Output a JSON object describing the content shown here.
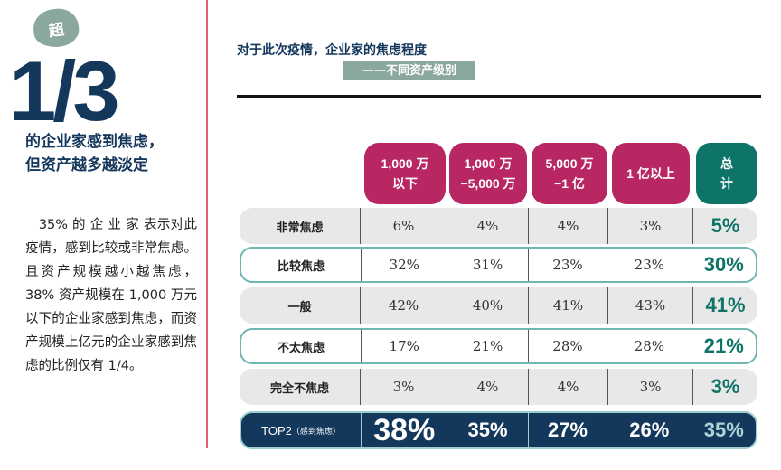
{
  "left": {
    "badge": "超",
    "big": "1/3",
    "headline1": "的企业家感到焦虑，",
    "headline2": "但资产越多越淡定",
    "paragraph": "　35% 的 企 业 家 表示对此疫情，感到比较或非常焦虑。且资产规模越小越焦虑，38% 资产规模在 1,000 万元以下的企业家感到焦虑，而资产规模上亿元的企业家感到焦虑的比例仅有 1/4。"
  },
  "chart_title": "对于此次疫情，企业家的焦虑程度",
  "chart_subtitle": "——不同资产级别",
  "colors": {
    "navy": "#14375c",
    "magenta": "#b82664",
    "teal": "#0e7468",
    "sage": "#8aa89d"
  },
  "chart_data": {
    "type": "table",
    "title": "对于此次疫情，企业家的焦虑程度",
    "columns": [
      "1,000 万以下",
      "1,000 万−5,000 万",
      "5,000 万−1 亿",
      "1 亿以上",
      "总计"
    ],
    "column_lines": [
      [
        "1,000 万",
        "以下"
      ],
      [
        "1,000 万",
        "−5,000 万"
      ],
      [
        "5,000 万",
        "−1 亿"
      ],
      [
        "1 亿以上",
        ""
      ],
      [
        "总",
        "计"
      ]
    ],
    "rows": [
      {
        "label": "非常焦虑",
        "values": [
          "6%",
          "4%",
          "4%",
          "3%",
          "5%"
        ]
      },
      {
        "label": "比较焦虑",
        "values": [
          "32%",
          "31%",
          "23%",
          "23%",
          "30%"
        ]
      },
      {
        "label": "一般",
        "values": [
          "42%",
          "40%",
          "41%",
          "43%",
          "41%"
        ]
      },
      {
        "label": "不太焦虑",
        "values": [
          "17%",
          "21%",
          "28%",
          "28%",
          "21%"
        ]
      },
      {
        "label": "完全不焦虑",
        "values": [
          "3%",
          "4%",
          "4%",
          "3%",
          "3%"
        ]
      }
    ],
    "top2": {
      "label": "TOP2",
      "note": "（感到焦虑）",
      "values": [
        "38%",
        "35%",
        "27%",
        "26%",
        "35%"
      ]
    }
  }
}
